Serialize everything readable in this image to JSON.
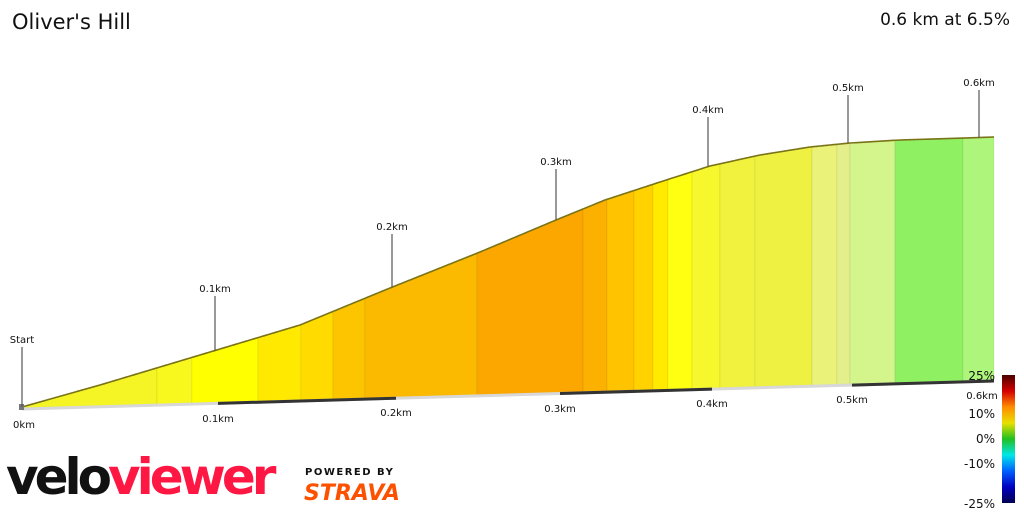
{
  "header": {
    "title": "Oliver's Hill",
    "summary": "0.6 km at 6.5%"
  },
  "chart_data": {
    "type": "area",
    "title": "Oliver's Hill",
    "xlabel": "",
    "ylabel": "",
    "x_ticks": [
      "0km",
      "0.1km",
      "0.2km",
      "0.3km",
      "0.4km",
      "0.5km",
      "0.6km"
    ],
    "profile_markers": [
      "Start",
      "0.1km",
      "0.2km",
      "0.3km",
      "0.4km",
      "0.5km",
      "0.6km"
    ],
    "segment_colors": [
      "#f5f526",
      "#f8f81e",
      "#ffff00",
      "#ffe900",
      "#ffdb00",
      "#fdc500",
      "#fbb900",
      "#fba700",
      "#fcb000",
      "#ffc300",
      "#ffd200",
      "#ffea00",
      "#ffff12",
      "#f6f72c",
      "#f0f23e",
      "#eef142",
      "#ebf27a",
      "#e4ef8c",
      "#d3f58c",
      "#8ff062",
      "#aef57c"
    ],
    "gradient_legend": {
      "labels": [
        "25%",
        "10%",
        "0%",
        "-10%",
        "-25%"
      ],
      "colors": [
        "#4a0000",
        "#d40000",
        "#ff8c00",
        "#e8e000",
        "#20c020",
        "#00e8e8",
        "#0060ff",
        "#0000c0",
        "#000050"
      ]
    }
  },
  "branding": {
    "logo_part1": "velo",
    "logo_part2": "viewer",
    "powered_by": "POWERED BY",
    "strava": "STRAVA"
  }
}
